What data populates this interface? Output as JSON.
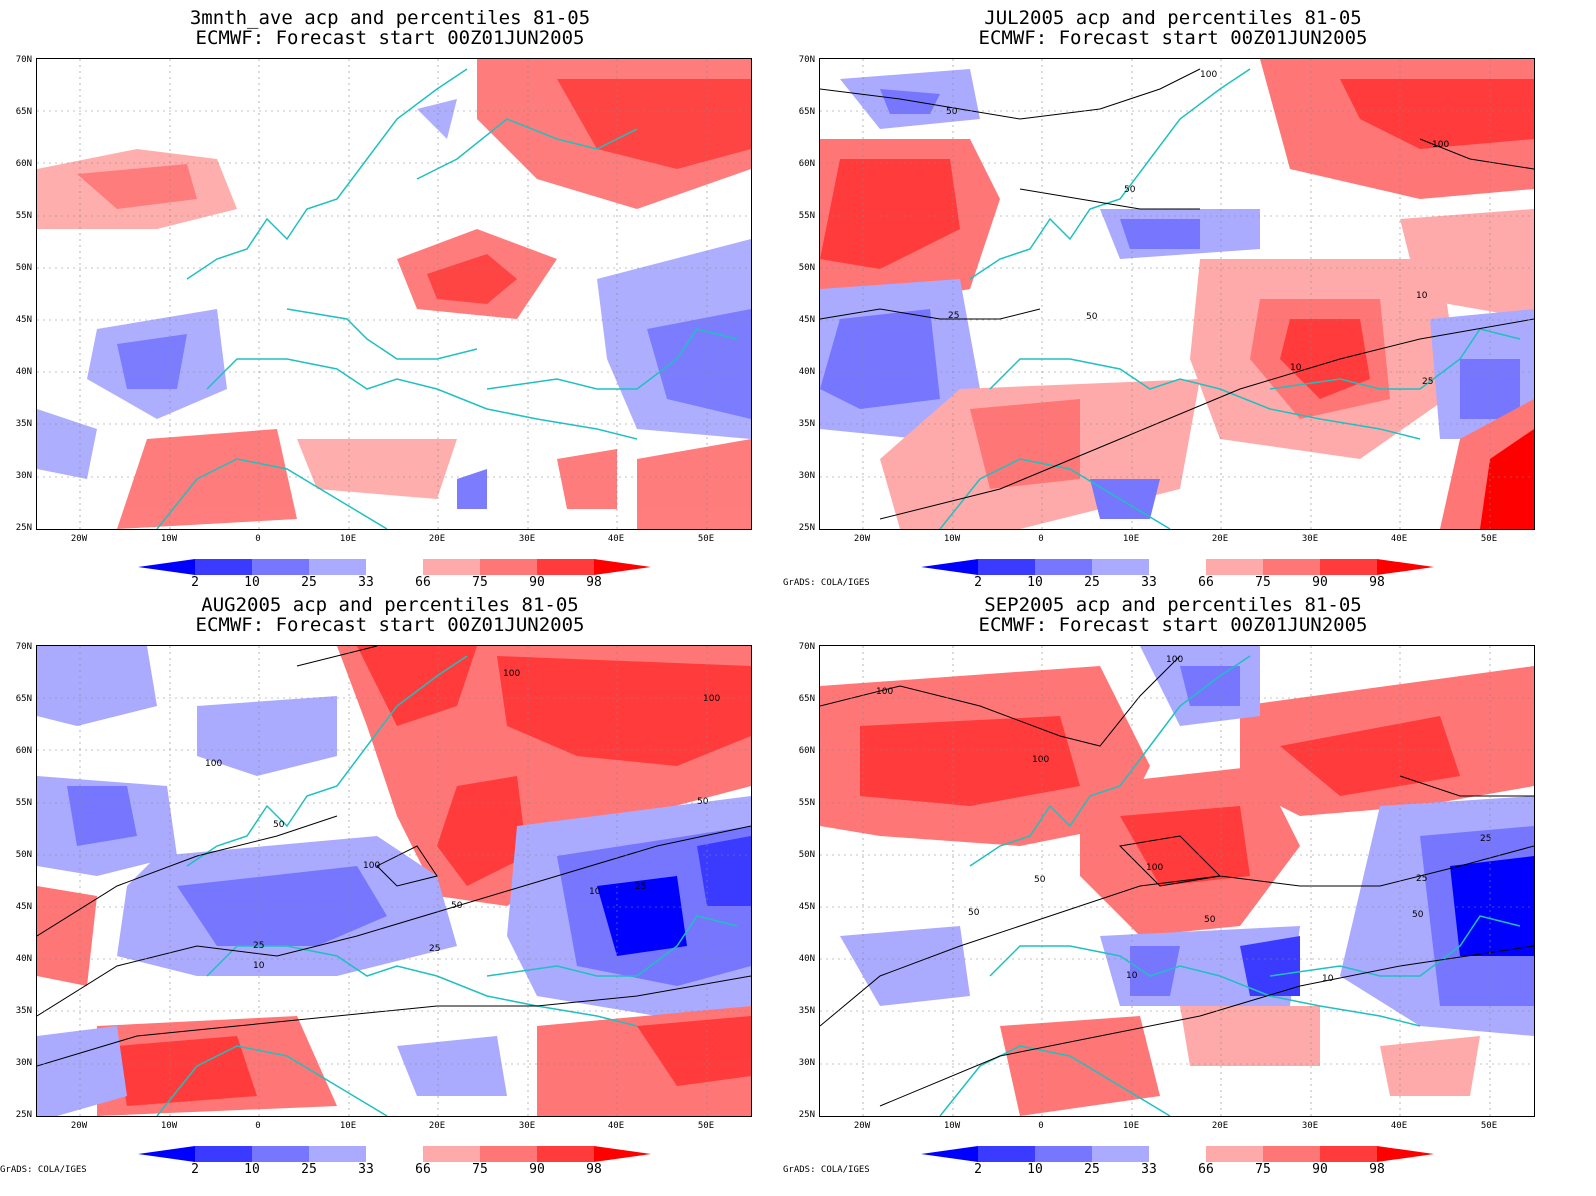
{
  "panels": [
    {
      "title1": "3mnth_ave acp and percentiles 81-05",
      "title2": "ECMWF: Forecast start 00Z01JUN2005",
      "credit": ""
    },
    {
      "title1": "JUL2005 acp and percentiles 81-05",
      "title2": "ECMWF: Forecast start 00Z01JUN2005",
      "credit": "GrADS: COLA/IGES"
    },
    {
      "title1": "AUG2005 acp and percentiles 81-05",
      "title2": "ECMWF: Forecast start 00Z01JUN2005",
      "credit": "GrADS: COLA/IGES"
    },
    {
      "title1": "SEP2005 acp and percentiles 81-05",
      "title2": "ECMWF: Forecast start 00Z01JUN2005",
      "credit": "GrADS: COLA/IGES"
    }
  ],
  "latitudes": [
    "70N",
    "65N",
    "60N",
    "55N",
    "50N",
    "45N",
    "40N",
    "35N",
    "30N",
    "25N"
  ],
  "longitudes": [
    "20W",
    "10W",
    "0",
    "10E",
    "20E",
    "30E",
    "40E",
    "50E"
  ],
  "colorbar": {
    "labels": [
      "2",
      "10",
      "25",
      "33",
      "66",
      "75",
      "90",
      "98"
    ],
    "colors": [
      "#0000ff",
      "#3b3bff",
      "#7676ff",
      "#aaaaff",
      "#ffffff",
      "#ffaaaa",
      "#ff7676",
      "#ff3b3b",
      "#ff0000"
    ]
  },
  "colors": {
    "coast": "#20c0c0",
    "contour": "#000000"
  }
}
